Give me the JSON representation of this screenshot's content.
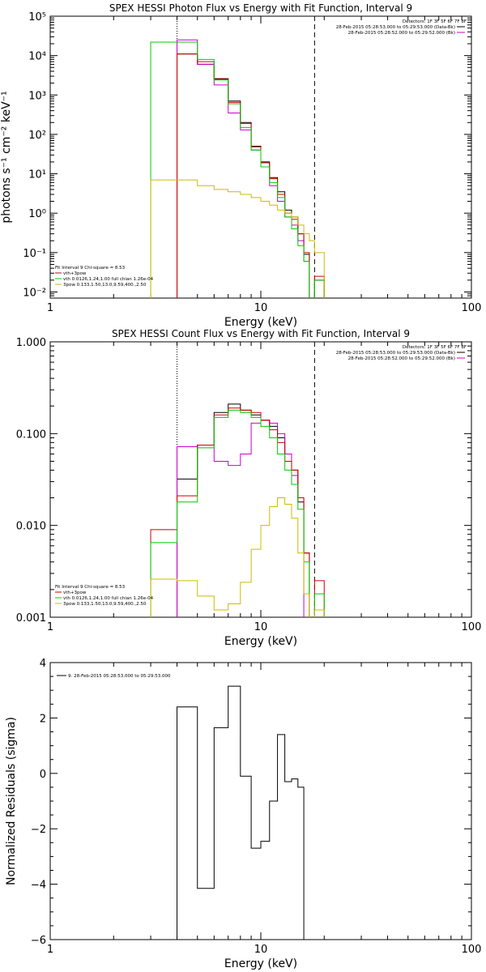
{
  "chart_data": [
    {
      "type": "line",
      "step": true,
      "title": "SPEX HESSI Photon Flux vs Energy with Fit Function, Interval 9",
      "xlabel": "Energy (keV)",
      "ylabel": "photons s⁻¹ cm⁻² keV⁻¹",
      "xscale": "log",
      "yscale": "log",
      "xlim": [
        1,
        100
      ],
      "ylim": [
        0.007,
        100000
      ],
      "xticks": [
        1,
        10,
        100
      ],
      "xtick_labels": [
        "1",
        "10",
        "100"
      ],
      "yticks": [
        0.01,
        0.1,
        1,
        10,
        100,
        1000,
        10000,
        100000
      ],
      "ytick_labels": [
        "10⁻²",
        "10⁻¹",
        "10⁰",
        "10¹",
        "10²",
        "10³",
        "10⁴",
        "10⁵"
      ],
      "vlines": [
        {
          "x": 4.0,
          "style": "dotted"
        },
        {
          "x": 18.0,
          "style": "dashed"
        }
      ],
      "detectors_text": "Detectors: 1F 3F 5F 6F 7F 8F",
      "legend_top_right": [
        {
          "text": "28-Feb-2015 05:28:53.000 to 05:29:53.000 (Data-Bk)",
          "color": "#000000"
        },
        {
          "text": "28-Feb-2015 05:28:52.000 to 05:29:52.000 (Bk)",
          "color": "#cc00cc"
        }
      ],
      "legend_bottom_left": [
        {
          "text": "Fit Interval 9   Chi-square = 8.53",
          "color": ""
        },
        {
          "text": "vth+3pow",
          "color": "#cc0000"
        },
        {
          "text": "vth 0.0126,1.24,1.00  full chian 1.26e-04",
          "color": "#00cc00"
        },
        {
          "text": "3pow 0.133,1.50,13.0,9.59,400.,2.50",
          "color": "#ccbb00"
        }
      ],
      "bin_edges": [
        3,
        4,
        5,
        6,
        7,
        8,
        9,
        10,
        11,
        12,
        13,
        14,
        15,
        16,
        17,
        18,
        20
      ],
      "series": [
        {
          "name": "Data-Bk",
          "color": "#000000",
          "values": [
            null,
            11000,
            6000,
            2600,
            700,
            200,
            50,
            20,
            8,
            3.5,
            1.2,
            0.8,
            0.3,
            0.09,
            null,
            0.02
          ]
        },
        {
          "name": "Bk",
          "color": "#cc00cc",
          "values": [
            null,
            25000,
            6000,
            1800,
            350,
            130,
            40,
            15,
            5,
            2,
            0.8,
            0.5,
            0.2,
            0.06,
            null,
            null
          ]
        },
        {
          "name": "vth+3pow",
          "color": "#cc0000",
          "values": [
            null,
            11000,
            7000,
            2500,
            650,
            190,
            48,
            19,
            7.5,
            3,
            1.0,
            0.7,
            0.3,
            0.1,
            null,
            0.025
          ]
        },
        {
          "name": "vth",
          "color": "#00cc00",
          "values": [
            22000,
            22000,
            8000,
            2400,
            600,
            150,
            40,
            15,
            6,
            2.5,
            0.8,
            0.4,
            0.15,
            0.06,
            null,
            0.02
          ]
        },
        {
          "name": "3pow",
          "color": "#ccbb00",
          "values": [
            7,
            7,
            5,
            4,
            3.5,
            3,
            2.5,
            2,
            1.6,
            1.2,
            1.0,
            0.8,
            0.5,
            0.3,
            0.2,
            0.1
          ]
        }
      ]
    },
    {
      "type": "line",
      "step": true,
      "title": "SPEX HESSI Count Flux vs Energy with Fit Function, Interval 9",
      "xlabel": "Energy (keV)",
      "ylabel": "",
      "xscale": "log",
      "yscale": "log",
      "xlim": [
        1,
        100
      ],
      "ylim": [
        0.001,
        1
      ],
      "xticks": [
        1,
        10,
        100
      ],
      "xtick_labels": [
        "1",
        "10",
        "100"
      ],
      "yticks": [
        0.001,
        0.01,
        0.1,
        1
      ],
      "ytick_labels": [
        "0.001",
        "0.010",
        "0.100",
        "1.000"
      ],
      "vlines": [
        {
          "x": 4.0,
          "style": "dotted"
        },
        {
          "x": 18.0,
          "style": "dashed"
        }
      ],
      "detectors_text": "Detectors: 1F 3F 5F 6F 7F 8F",
      "legend_top_right": [
        {
          "text": "28-Feb-2015 05:28:53.000 to 05:29:53.000 (Data-Bk)",
          "color": "#000000"
        },
        {
          "text": "28-Feb-2015 05:28:52.000 to 05:29:52.000 (Bk)",
          "color": "#cc00cc"
        }
      ],
      "legend_bottom_left": [
        {
          "text": "Fit Interval 9   Chi-square = 8.53",
          "color": ""
        },
        {
          "text": "vth+3pow",
          "color": "#cc0000"
        },
        {
          "text": "vth 0.0126,1.24,1.00  full chian 1.26e-04",
          "color": "#00cc00"
        },
        {
          "text": "3pow 0.133,1.50,13.0,9.59,400.,2.50",
          "color": "#ccbb00"
        }
      ],
      "bin_edges": [
        3,
        4,
        5,
        6,
        7,
        8,
        9,
        10,
        11,
        12,
        13,
        14,
        15,
        16,
        17,
        18,
        20
      ],
      "series": [
        {
          "name": "Data-Bk",
          "color": "#000000",
          "values": [
            null,
            0.032,
            0.075,
            0.17,
            0.21,
            0.18,
            0.16,
            0.14,
            0.12,
            0.09,
            0.06,
            0.04,
            0.018,
            0.005,
            null,
            null
          ]
        },
        {
          "name": "Bk",
          "color": "#cc00cc",
          "values": [
            null,
            0.072,
            0.075,
            0.05,
            0.045,
            0.06,
            0.13,
            0.14,
            0.13,
            0.1,
            0.06,
            0.035,
            0.02,
            null,
            null,
            null
          ]
        },
        {
          "name": "vth+3pow",
          "color": "#cc0000",
          "values": [
            0.009,
            0.021,
            0.075,
            0.16,
            0.19,
            0.18,
            0.17,
            0.14,
            0.11,
            0.08,
            0.05,
            0.04,
            0.02,
            0.005,
            null,
            0.0025
          ]
        },
        {
          "name": "vth",
          "color": "#00cc00",
          "values": [
            0.0065,
            0.018,
            0.07,
            0.15,
            0.18,
            0.17,
            0.15,
            0.12,
            0.09,
            0.06,
            0.04,
            0.028,
            0.015,
            0.004,
            null,
            0.0018
          ]
        },
        {
          "name": "3pow",
          "color": "#ccbb00",
          "values": [
            0.0026,
            0.0025,
            0.0017,
            0.0012,
            0.0014,
            0.0024,
            0.0055,
            0.01,
            0.016,
            0.02,
            0.017,
            0.012,
            0.005,
            0.0018,
            null,
            0.0012
          ]
        }
      ]
    },
    {
      "type": "line",
      "step": true,
      "title": "",
      "xlabel": "Energy (keV)",
      "ylabel": "Normalized Residuals (sigma)",
      "xscale": "log",
      "yscale": "linear",
      "xlim": [
        1,
        100
      ],
      "ylim": [
        -6,
        4
      ],
      "xticks": [
        1,
        10,
        100
      ],
      "xtick_labels": [
        "1",
        "10",
        "100"
      ],
      "yticks": [
        -6,
        -4,
        -2,
        0,
        2,
        4
      ],
      "ytick_labels": [
        "−6",
        "−4",
        "−2",
        "0",
        "2",
        "4"
      ],
      "legend_top_left": [
        {
          "text": "9: 28-Feb-2015 05:28:53.000 to 05:29:53.000",
          "color": "#000000"
        }
      ],
      "bin_edges": [
        4,
        5,
        6,
        7,
        8,
        9,
        10,
        11,
        12,
        13,
        14,
        15,
        16,
        17,
        18
      ],
      "series": [
        {
          "name": "",
          "color": "#000000",
          "values": [
            2.4,
            -4.15,
            1.65,
            3.15,
            -0.1,
            -2.7,
            -2.45,
            -1.0,
            1.4,
            -0.3,
            -0.2,
            -0.5,
            null,
            null
          ]
        }
      ]
    }
  ]
}
